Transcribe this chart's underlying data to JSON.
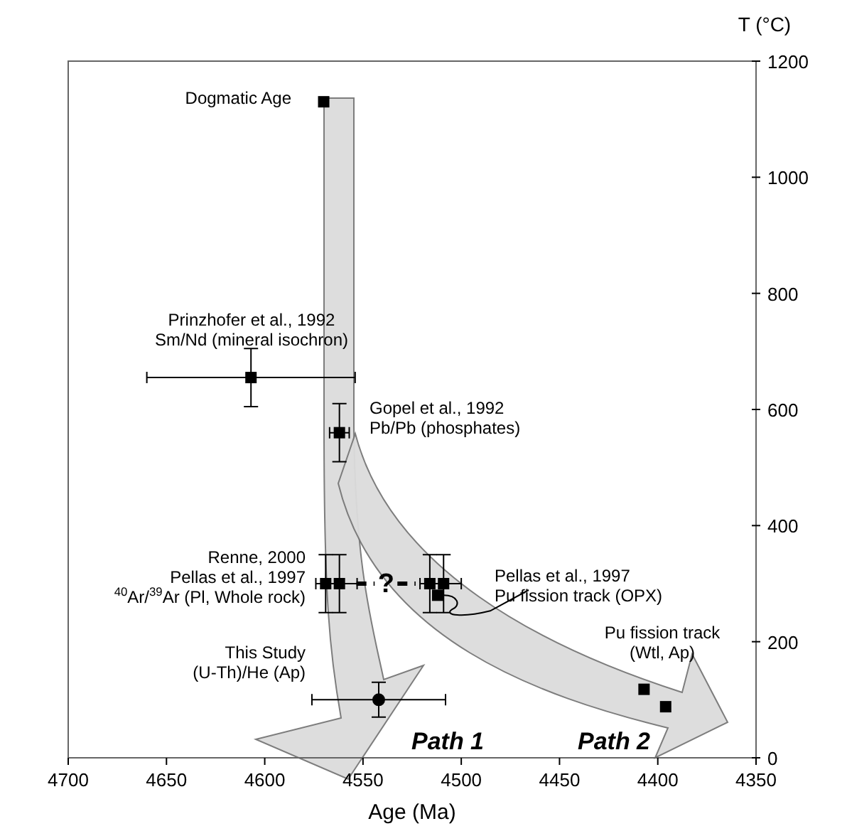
{
  "chart_data": {
    "type": "scatter",
    "xlabel": "Age (Ma)",
    "ylabel": "T (°C)",
    "xlim": [
      4700,
      4350
    ],
    "xticks": [
      4700,
      4650,
      4600,
      4550,
      4500,
      4450,
      4400,
      4350
    ],
    "ylim": [
      0,
      1200
    ],
    "yticks": [
      0,
      200,
      400,
      600,
      800,
      1000,
      1200
    ],
    "grid": false,
    "series": [
      {
        "color": "#000000",
        "marker": "square",
        "x": [
          4570,
          4607,
          4562,
          4569,
          4562,
          4516,
          4509,
          4512,
          4407,
          4396
        ],
        "values": [
          1130,
          655,
          560,
          300,
          300,
          300,
          300,
          280,
          118,
          88
        ],
        "errors": [
          null,
          50,
          50,
          50,
          50,
          50,
          50,
          null,
          null,
          null
        ],
        "xerrors": [
          null,
          53,
          5,
          5,
          9,
          5,
          9,
          null,
          null,
          null
        ]
      },
      {
        "color": "#000000",
        "marker": "circle",
        "x": [
          4542
        ],
        "values": [
          100
        ],
        "errors": [
          30
        ],
        "xerrors": [
          34
        ]
      }
    ],
    "annotations": [
      "Dogmatic Age",
      "Prinzhofer et al., 1992\nSm/Nd (mineral isochron)",
      "Gopel et al., 1992\nPb/Pb (phosphates)",
      "Renne, 2000\nPellas et al., 1997\n$^{40}$Ar/$^{39}$Ar (Pl, Whole rock)",
      {
        "text": "Pellas et al., 1997\nPu fission track (OPX)",
        "x": 4512,
        "y": 280
      },
      "Pu fission track\n(Wtl, Ap)",
      "This Study\n(U-Th)/He (Ap)",
      "Path 1",
      "Path 2",
      "?"
    ]
  }
}
